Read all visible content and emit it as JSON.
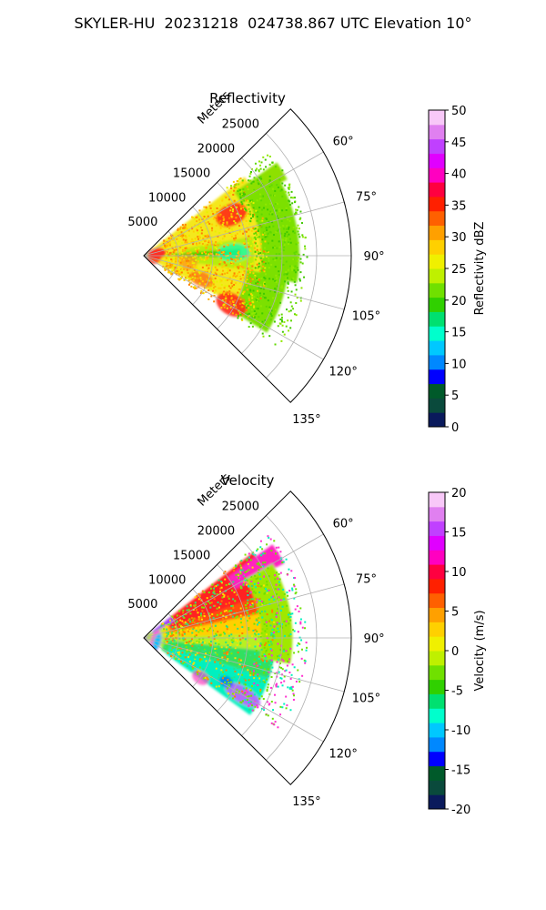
{
  "figure": {
    "title": "SKYLER-HU  20231218  024738.867 UTC Elevation 10°"
  },
  "chart_data": [
    {
      "type": "polar-sector",
      "title": "Reflectivity",
      "radial_label": "Meters",
      "radial_ticks": [
        5000,
        10000,
        15000,
        20000,
        25000
      ],
      "radial_tick_labels": [
        "5000",
        "10000",
        "15000",
        "20000",
        "25000"
      ],
      "rmax": 30000,
      "theta_range_deg": [
        45,
        135
      ],
      "theta_ticks_deg": [
        60,
        75,
        90,
        105,
        120,
        135
      ],
      "theta_tick_labels": [
        "60°",
        "75°",
        "90°",
        "105°",
        "120°",
        "135°"
      ],
      "grid": true,
      "colorbar": {
        "label": "Reflectivity dBZ",
        "min": 0,
        "max": 50,
        "ticks": [
          0,
          5,
          10,
          15,
          20,
          25,
          30,
          35,
          40,
          45,
          50
        ],
        "tick_labels": [
          "0",
          "5",
          "10",
          "15",
          "20",
          "25",
          "30",
          "35",
          "40",
          "45",
          "50"
        ],
        "colors": [
          "#0a1a5c",
          "#0a4a3c",
          "#005a2a",
          "#0000ff",
          "#0088ff",
          "#00c8ff",
          "#00ffcc",
          "#00e070",
          "#30d000",
          "#70e000",
          "#bff000",
          "#f0f000",
          "#ffd000",
          "#ffa000",
          "#ff6000",
          "#ff2000",
          "#ff0040",
          "#ff00c0",
          "#e000ff",
          "#c040ff",
          "#e080f0",
          "#f8c8f8"
        ]
      }
    },
    {
      "type": "polar-sector",
      "title": "Velocity",
      "radial_label": "Meters",
      "radial_ticks": [
        5000,
        10000,
        15000,
        20000,
        25000
      ],
      "radial_tick_labels": [
        "5000",
        "10000",
        "15000",
        "20000",
        "25000"
      ],
      "rmax": 30000,
      "theta_range_deg": [
        45,
        135
      ],
      "theta_ticks_deg": [
        60,
        75,
        90,
        105,
        120,
        135
      ],
      "theta_tick_labels": [
        "60°",
        "75°",
        "90°",
        "105°",
        "120°",
        "135°"
      ],
      "grid": true,
      "colorbar": {
        "label": "Velocity (m/s)",
        "min": -20,
        "max": 20,
        "ticks": [
          -20,
          -15,
          -10,
          -5,
          0,
          5,
          10,
          15,
          20
        ],
        "tick_labels": [
          "-20",
          "-15",
          "-10",
          "-5",
          "0",
          "5",
          "10",
          "15",
          "20"
        ],
        "colors": [
          "#0a1a5c",
          "#0a4a3c",
          "#005a2a",
          "#0000ff",
          "#0088ff",
          "#00c8ff",
          "#00ffcc",
          "#00e070",
          "#30d000",
          "#70e000",
          "#bff000",
          "#f0f000",
          "#ffd000",
          "#ffa000",
          "#ff6000",
          "#ff2000",
          "#ff0040",
          "#ff00c0",
          "#e000ff",
          "#c040ff",
          "#e080f0",
          "#f8c8f8"
        ]
      }
    }
  ]
}
